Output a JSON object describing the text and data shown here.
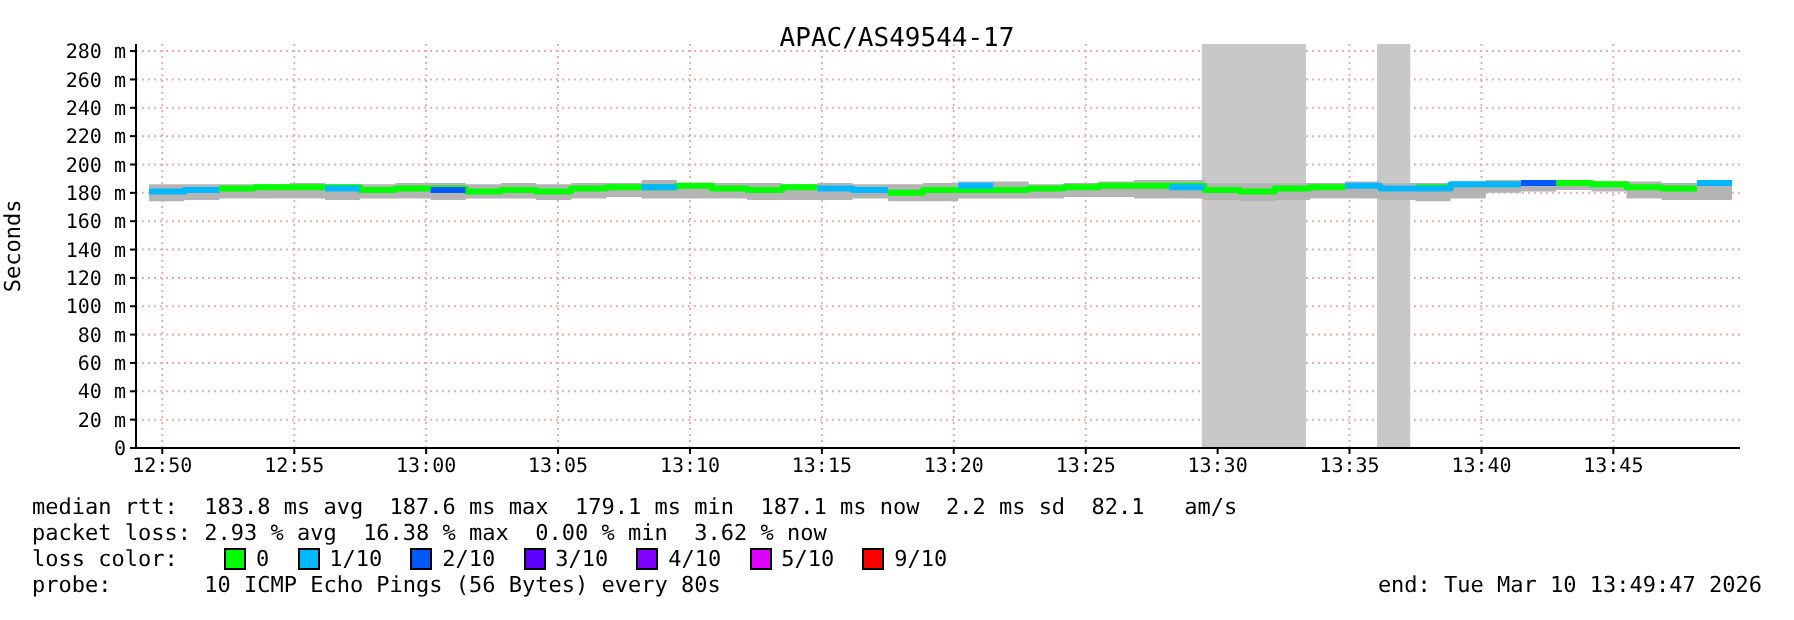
{
  "chart_data": {
    "type": "step",
    "title": "APAC/AS49544-17",
    "ylabel": "Seconds",
    "legend_title": "loss color:",
    "legend": "bottom",
    "grid": true,
    "x": [
      12.825,
      12.8472,
      12.8694,
      12.8917,
      12.9139,
      12.9361,
      12.9583,
      12.9806,
      13.0028,
      13.025,
      13.0472,
      13.0694,
      13.0917,
      13.1139,
      13.1361,
      13.1583,
      13.1806,
      13.2028,
      13.225,
      13.2472,
      13.2694,
      13.2917,
      13.3139,
      13.3361,
      13.3583,
      13.3806,
      13.4028,
      13.425,
      13.4472,
      13.4694,
      13.4917,
      13.5139,
      13.5361,
      13.5583,
      13.5806,
      13.6028,
      13.625,
      13.6472,
      13.6694,
      13.6917,
      13.7139,
      13.7361,
      13.7583,
      13.7806,
      13.8028,
      13.825
    ],
    "series": [
      {
        "color": "#b4b4b4",
        "values": [
          null,
          null,
          null,
          null,
          null,
          null,
          null,
          null,
          null,
          null,
          null,
          null,
          null,
          null,
          null,
          null,
          null,
          null,
          null,
          null,
          null,
          null,
          null,
          null,
          null,
          null,
          null,
          null,
          null,
          null,
          null,
          null,
          null,
          null,
          null,
          null,
          null,
          null,
          null,
          null,
          null,
          null,
          null,
          null,
          null,
          null
        ],
        "lower": [
          174,
          175,
          176,
          176,
          176,
          175,
          176,
          176,
          175,
          176,
          176,
          175,
          176,
          177,
          176,
          176,
          176,
          175,
          175,
          175,
          176,
          174,
          174,
          176,
          176,
          176,
          177,
          177,
          176,
          176,
          175,
          174,
          175,
          176,
          176,
          175,
          174,
          176,
          180,
          181,
          182,
          181,
          176,
          175,
          175,
          175
        ],
        "upper": [
          186,
          186,
          186,
          186,
          187,
          186,
          186,
          187,
          187,
          186,
          187,
          186,
          187,
          187,
          189,
          187,
          187,
          187,
          186,
          187,
          186,
          186,
          187,
          188,
          188,
          186,
          187,
          188,
          189,
          189,
          187,
          187,
          187,
          187,
          188,
          187,
          187,
          188,
          189,
          189,
          189,
          188,
          188,
          187,
          189,
          189
        ]
      },
      {
        "name": "0",
        "color": "#00ff00",
        "values": [
          null,
          null,
          183,
          184,
          184,
          184,
          182,
          183,
          183,
          181,
          182,
          181,
          183,
          184,
          184,
          185,
          183,
          182,
          184,
          184,
          null,
          180,
          182,
          182,
          182,
          183,
          184,
          185,
          185,
          185,
          182,
          181,
          183,
          184,
          184,
          null,
          184,
          184,
          null,
          null,
          187,
          186,
          184,
          183,
          183,
          null
        ]
      },
      {
        "name": "1/10",
        "color": "#00b8ff",
        "values": [
          181,
          182,
          182,
          null,
          null,
          183,
          183,
          null,
          null,
          null,
          null,
          null,
          null,
          null,
          184,
          184,
          null,
          null,
          null,
          183,
          182,
          182,
          null,
          185,
          185,
          null,
          null,
          null,
          null,
          184,
          184,
          null,
          null,
          null,
          185,
          183,
          183,
          186,
          186,
          186,
          null,
          null,
          null,
          null,
          187,
          187
        ]
      },
      {
        "name": "2/10",
        "color": "#0059ff",
        "values": [
          null,
          null,
          null,
          null,
          null,
          null,
          null,
          null,
          182,
          182,
          null,
          null,
          null,
          null,
          null,
          null,
          null,
          null,
          null,
          null,
          null,
          null,
          null,
          null,
          null,
          null,
          null,
          null,
          null,
          null,
          null,
          null,
          null,
          null,
          null,
          null,
          null,
          null,
          null,
          187,
          187,
          null,
          null,
          null,
          null,
          null
        ]
      },
      {
        "name": "3/10",
        "color": "#5e00ff",
        "values": [
          null,
          null,
          null,
          null,
          null,
          null,
          null,
          null,
          null,
          null,
          null,
          null,
          null,
          null,
          null,
          null,
          null,
          null,
          null,
          null,
          null,
          null,
          null,
          null,
          null,
          null,
          null,
          null,
          null,
          null,
          null,
          null,
          null,
          null,
          null,
          null,
          null,
          null,
          null,
          null,
          null,
          null,
          null,
          null,
          null,
          null
        ]
      },
      {
        "name": "4/10",
        "color": "#7e00ff",
        "values": [
          null,
          null,
          null,
          null,
          null,
          null,
          null,
          null,
          null,
          null,
          null,
          null,
          null,
          null,
          null,
          null,
          null,
          null,
          null,
          null,
          null,
          null,
          null,
          null,
          null,
          null,
          null,
          null,
          null,
          null,
          null,
          null,
          null,
          null,
          null,
          null,
          null,
          null,
          null,
          null,
          null,
          null,
          null,
          null,
          null,
          null
        ]
      },
      {
        "name": "5/10",
        "color": "#dd00ff",
        "values": [
          null,
          null,
          null,
          null,
          null,
          null,
          null,
          null,
          null,
          null,
          null,
          null,
          null,
          null,
          null,
          null,
          null,
          null,
          null,
          null,
          null,
          null,
          null,
          null,
          null,
          null,
          null,
          null,
          null,
          null,
          null,
          null,
          null,
          null,
          null,
          null,
          null,
          null,
          null,
          null,
          null,
          null,
          null,
          null,
          null,
          null
        ]
      },
      {
        "name": "9/10",
        "color": "#ff0000",
        "values": [
          null,
          null,
          null,
          null,
          null,
          null,
          null,
          null,
          null,
          null,
          null,
          null,
          null,
          null,
          null,
          null,
          null,
          null,
          null,
          null,
          null,
          null,
          null,
          null,
          null,
          null,
          null,
          null,
          null,
          null,
          null,
          null,
          null,
          null,
          null,
          null,
          null,
          null,
          null,
          null,
          null,
          null,
          null,
          null,
          null,
          null
        ]
      }
    ],
    "xlim": [
      12.8167,
      13.83
    ],
    "xticks": [
      {
        "value": 12.8333,
        "label": "12:50"
      },
      {
        "value": 12.9167,
        "label": "12:55"
      },
      {
        "value": 13.0,
        "label": "13:00"
      },
      {
        "value": 13.0833,
        "label": "13:05"
      },
      {
        "value": 13.1667,
        "label": "13:10"
      },
      {
        "value": 13.25,
        "label": "13:15"
      },
      {
        "value": 13.3333,
        "label": "13:20"
      },
      {
        "value": 13.4167,
        "label": "13:25"
      },
      {
        "value": 13.5,
        "label": "13:30"
      },
      {
        "value": 13.5833,
        "label": "13:35"
      },
      {
        "value": 13.6667,
        "label": "13:40"
      },
      {
        "value": 13.75,
        "label": "13:45"
      }
    ],
    "ylim": [
      0,
      285
    ],
    "yticks": [
      0,
      {
        "value": 20,
        "label": "20 m"
      },
      {
        "value": 40,
        "label": "40 m"
      },
      {
        "value": 60,
        "label": "60 m"
      },
      {
        "value": 80,
        "label": "80 m"
      },
      {
        "value": 100,
        "label": "100 m"
      },
      {
        "value": 120,
        "label": "120 m"
      },
      {
        "value": 140,
        "label": "140 m"
      },
      {
        "value": 160,
        "label": "160 m"
      },
      {
        "value": 180,
        "label": "180 m"
      },
      {
        "value": 200,
        "label": "200 m"
      },
      {
        "value": 220,
        "label": "220 m"
      },
      {
        "value": 240,
        "label": "240 m"
      },
      {
        "value": 260,
        "label": "260 m"
      },
      {
        "value": 280,
        "label": "280 m"
      }
    ],
    "bands": [
      {
        "axis": "x",
        "from": 13.49,
        "to": 13.5558,
        "color": "#c8c8c8"
      },
      {
        "axis": "x",
        "from": 13.6007,
        "to": 13.6217,
        "color": "#c8c8c8"
      }
    ],
    "annotations": [
      "median rtt:  183.8 ms avg  187.6 ms max  179.1 ms min  187.1 ms now  2.2 ms sd  82.1   am/s",
      "packet loss: 2.93 % avg  16.38 % max  0.00 % min  3.62 % now",
      "probe:       10 ICMP Echo Pings (56 Bytes) every 80s",
      "end: Tue Mar 10 13:49:47 2026"
    ]
  }
}
